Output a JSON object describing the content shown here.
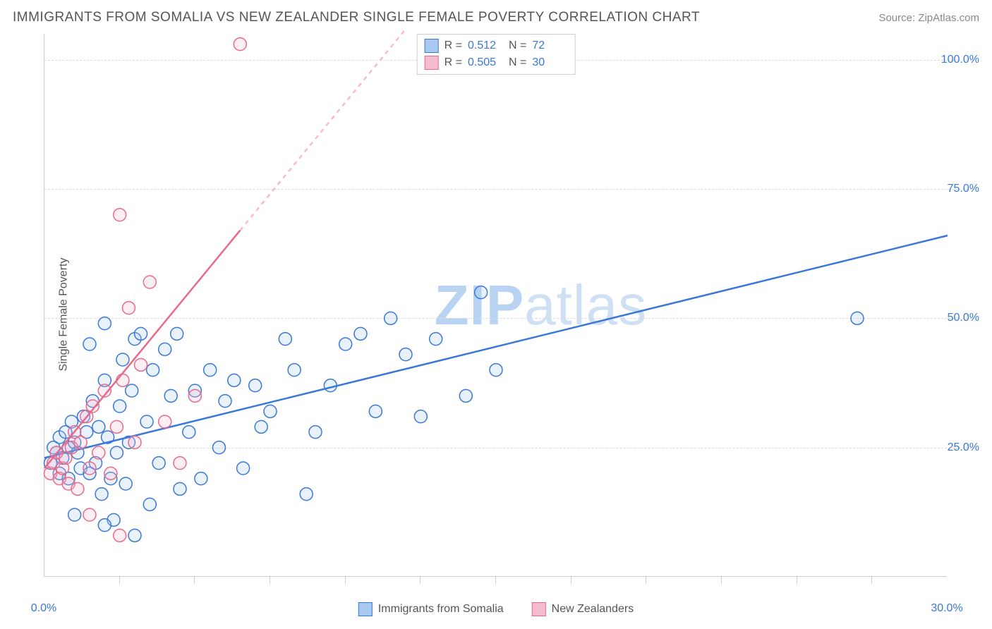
{
  "title": "IMMIGRANTS FROM SOMALIA VS NEW ZEALANDER SINGLE FEMALE POVERTY CORRELATION CHART",
  "source_label": "Source: ZipAtlas.com",
  "watermark": {
    "bold": "ZIP",
    "rest": "atlas"
  },
  "ylabel": "Single Female Poverty",
  "chart": {
    "type": "scatter",
    "xlim": [
      0,
      30
    ],
    "ylim": [
      0,
      105
    ],
    "xticks_minor": [
      2.5,
      5,
      7.5,
      10,
      12.5,
      15,
      17.5,
      20,
      22.5,
      25,
      27.5
    ],
    "xticks_labeled": [
      {
        "v": 0,
        "label": "0.0%"
      },
      {
        "v": 30,
        "label": "30.0%"
      }
    ],
    "yticks": [
      {
        "v": 25,
        "label": "25.0%"
      },
      {
        "v": 50,
        "label": "50.0%"
      },
      {
        "v": 75,
        "label": "75.0%"
      },
      {
        "v": 100,
        "label": "100.0%"
      }
    ],
    "grid_color": "#dddddd",
    "axis_color": "#cccccc",
    "background_color": "#ffffff",
    "marker_radius": 9,
    "marker_stroke_width": 1.5,
    "marker_fill_opacity": 0.25,
    "line_width": 2.5,
    "dash": "6,6",
    "series": [
      {
        "key": "somalia",
        "name": "Immigrants from Somalia",
        "color": "#3a78d8",
        "fill": "#a9c9f0",
        "R": "0.512",
        "N": "72",
        "trend": {
          "x1": 0,
          "y1": 23,
          "x2": 30,
          "y2": 66,
          "dashed_to_x": null
        },
        "points": [
          [
            0.2,
            22
          ],
          [
            0.3,
            25
          ],
          [
            0.4,
            24
          ],
          [
            0.5,
            27
          ],
          [
            0.6,
            23
          ],
          [
            0.7,
            28
          ],
          [
            0.8,
            25
          ],
          [
            0.9,
            30
          ],
          [
            1.0,
            26
          ],
          [
            1.1,
            24
          ],
          [
            1.2,
            21
          ],
          [
            1.3,
            31
          ],
          [
            1.4,
            28
          ],
          [
            1.5,
            20
          ],
          [
            1.6,
            34
          ],
          [
            1.7,
            22
          ],
          [
            1.8,
            29
          ],
          [
            1.9,
            16
          ],
          [
            2.0,
            38
          ],
          [
            2.1,
            27
          ],
          [
            2.2,
            19
          ],
          [
            2.3,
            11
          ],
          [
            2.4,
            24
          ],
          [
            2.5,
            33
          ],
          [
            2.6,
            42
          ],
          [
            2.7,
            18
          ],
          [
            2.8,
            26
          ],
          [
            2.9,
            36
          ],
          [
            3.0,
            46
          ],
          [
            3.2,
            47
          ],
          [
            3.4,
            30
          ],
          [
            3.5,
            14
          ],
          [
            3.6,
            40
          ],
          [
            3.8,
            22
          ],
          [
            4.0,
            44
          ],
          [
            4.2,
            35
          ],
          [
            4.4,
            47
          ],
          [
            4.5,
            17
          ],
          [
            4.8,
            28
          ],
          [
            5.0,
            36
          ],
          [
            5.2,
            19
          ],
          [
            5.5,
            40
          ],
          [
            5.8,
            25
          ],
          [
            6.0,
            34
          ],
          [
            6.3,
            38
          ],
          [
            6.6,
            21
          ],
          [
            7.0,
            37
          ],
          [
            7.2,
            29
          ],
          [
            7.5,
            32
          ],
          [
            8.0,
            46
          ],
          [
            8.3,
            40
          ],
          [
            8.7,
            16
          ],
          [
            9.0,
            28
          ],
          [
            9.5,
            37
          ],
          [
            10.0,
            45
          ],
          [
            10.5,
            47
          ],
          [
            11.0,
            32
          ],
          [
            11.5,
            50
          ],
          [
            12.0,
            43
          ],
          [
            12.5,
            31
          ],
          [
            13.0,
            46
          ],
          [
            14.0,
            35
          ],
          [
            14.5,
            55
          ],
          [
            15.0,
            40
          ],
          [
            1.0,
            12
          ],
          [
            2.0,
            10
          ],
          [
            3.0,
            8
          ],
          [
            1.5,
            45
          ],
          [
            2.0,
            49
          ],
          [
            27.0,
            50
          ],
          [
            0.5,
            20
          ],
          [
            0.8,
            19
          ]
        ]
      },
      {
        "key": "newzealand",
        "name": "New Zealanders",
        "color": "#e86a8a",
        "fill": "#f5bccd",
        "R": "0.505",
        "N": "30",
        "trend": {
          "x1": 0,
          "y1": 21,
          "x2": 6.5,
          "y2": 67,
          "dashed_to_x": 12
        },
        "points": [
          [
            0.2,
            20
          ],
          [
            0.3,
            22
          ],
          [
            0.4,
            24
          ],
          [
            0.5,
            19
          ],
          [
            0.6,
            21
          ],
          [
            0.7,
            23
          ],
          [
            0.8,
            18
          ],
          [
            0.9,
            25
          ],
          [
            1.0,
            28
          ],
          [
            1.1,
            17
          ],
          [
            1.2,
            26
          ],
          [
            1.4,
            31
          ],
          [
            1.5,
            21
          ],
          [
            1.6,
            33
          ],
          [
            1.8,
            24
          ],
          [
            2.0,
            36
          ],
          [
            2.2,
            20
          ],
          [
            2.4,
            29
          ],
          [
            2.5,
            70
          ],
          [
            2.6,
            38
          ],
          [
            2.8,
            52
          ],
          [
            3.0,
            26
          ],
          [
            3.2,
            41
          ],
          [
            3.5,
            57
          ],
          [
            4.0,
            30
          ],
          [
            4.5,
            22
          ],
          [
            5.0,
            35
          ],
          [
            1.5,
            12
          ],
          [
            2.5,
            8
          ],
          [
            6.5,
            103
          ]
        ]
      }
    ]
  },
  "legend_top": {
    "r_label": "R  =",
    "n_label": "N  ="
  },
  "fontsize": {
    "title": 19,
    "source": 15,
    "axis": 16,
    "legend": 16,
    "watermark": 80
  },
  "colors": {
    "title": "#555555",
    "source": "#888888",
    "tick": "#3a78d8",
    "watermark_bold": "#b9d4f3",
    "watermark_light": "#cfe0f5"
  }
}
